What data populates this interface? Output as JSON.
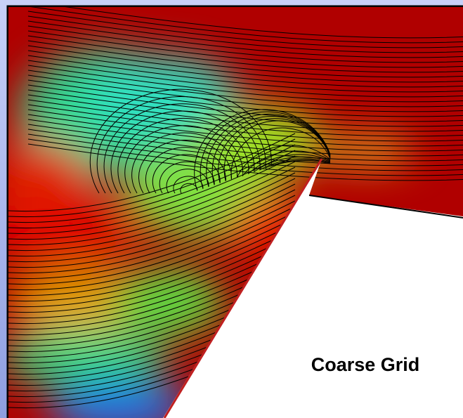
{
  "caption": "Coarse Grid"
}
